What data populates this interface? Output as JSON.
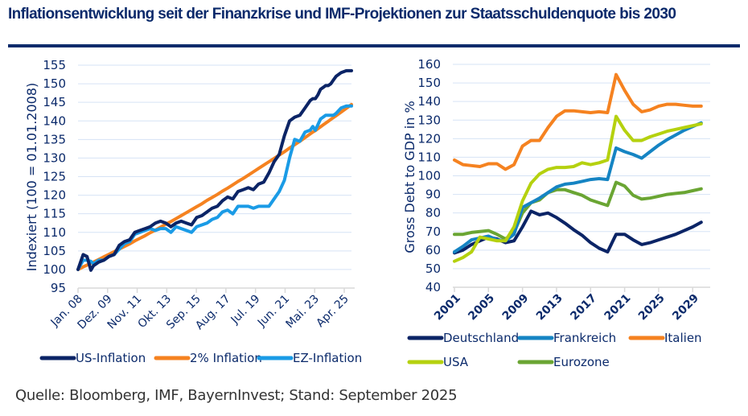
{
  "header": {
    "title": "Inflationsentwicklung seit der Finanzkrise und IMF-Projektionen zur Staatsschuldenquote bis 2030",
    "rule_color": "#0b2a6b"
  },
  "footer": {
    "source": "Quelle: Bloomberg, IMF, BayernInvest; Stand: September 2025"
  },
  "chart_data": [
    {
      "type": "line",
      "title": "",
      "xlabel": "",
      "ylabel": "Indexiert (100 =  01.01.2008)",
      "ylim": [
        95,
        155
      ],
      "yticks": [
        "95",
        "100",
        "105",
        "110",
        "115",
        "120",
        "125",
        "130",
        "135",
        "140",
        "145",
        "150",
        "155"
      ],
      "xticks": [
        "Jan. 08",
        "Dez. 09",
        "Nov. 11",
        "Okt. 13",
        "Sep. 15",
        "Aug. 17",
        "Jul. 19",
        "Jun. 21",
        "Mai. 23",
        "Apr. 25"
      ],
      "x_range_months": [
        0,
        212
      ],
      "grid": true,
      "legend_position": "bottom",
      "x_months": [
        0,
        4,
        7,
        10,
        12,
        16,
        20,
        24,
        28,
        32,
        36,
        40,
        44,
        48,
        52,
        56,
        60,
        64,
        68,
        72,
        76,
        80,
        84,
        88,
        92,
        96,
        100,
        104,
        108,
        112,
        116,
        120,
        124,
        128,
        132,
        136,
        140,
        144,
        148,
        152,
        156,
        160,
        164,
        168,
        172,
        176,
        180,
        182,
        184,
        186,
        188,
        190,
        192,
        194,
        196,
        198,
        200,
        204,
        208,
        212
      ],
      "series": [
        {
          "name": "US-Inflation",
          "color": "#0b2466",
          "values": [
            100,
            104,
            103.5,
            99.8,
            101,
            102,
            102.5,
            103.5,
            104,
            106.5,
            107.5,
            108,
            110,
            110.5,
            111,
            111.5,
            112.5,
            113,
            112.5,
            111.5,
            112.5,
            113,
            112.5,
            112,
            114,
            114.5,
            115.5,
            116.5,
            117,
            118.5,
            119.5,
            119,
            121,
            121.5,
            122,
            121.5,
            123,
            123.5,
            126,
            129,
            131,
            136,
            140,
            141,
            141.5,
            143.5,
            145.5,
            146,
            146,
            147,
            148.5,
            149,
            149.5,
            149.5,
            150,
            151,
            152,
            153,
            153.5,
            153.5
          ]
        },
        {
          "name": "2% Inflation",
          "color": "#f58220",
          "values": [
            100,
            100.7,
            101.2,
            101.7,
            102,
            102.7,
            103.4,
            104.1,
            104.8,
            105.5,
            106.2,
            106.9,
            107.7,
            108.4,
            109.1,
            109.9,
            110.6,
            111.4,
            112.2,
            112.9,
            113.7,
            114.5,
            115.3,
            116.1,
            116.9,
            117.7,
            118.6,
            119.4,
            120.2,
            121.1,
            121.9,
            122.8,
            123.7,
            124.5,
            125.4,
            126.3,
            127.2,
            128.1,
            129,
            129.9,
            130.8,
            131.7,
            132.7,
            133.6,
            134.5,
            135.5,
            136.5,
            137,
            137.4,
            137.9,
            138.4,
            138.9,
            139.4,
            139.9,
            140.4,
            140.9,
            141.4,
            142.4,
            143.4,
            144.4
          ]
        },
        {
          "name": "EZ-Inflation",
          "color": "#1a9be6",
          "values": [
            100,
            102.5,
            102.5,
            102.2,
            101.5,
            102.5,
            102.5,
            103.5,
            104,
            105.5,
            107,
            107.5,
            109.5,
            110,
            110.5,
            111,
            110.5,
            111,
            111,
            110,
            111.5,
            111,
            110.5,
            110,
            111.5,
            112,
            112.5,
            113.5,
            114,
            115.5,
            116,
            115,
            117,
            117,
            117,
            116.5,
            117,
            117,
            117,
            119,
            121,
            124,
            130,
            135,
            134.5,
            137,
            137.5,
            138.5,
            137.5,
            139,
            140.5,
            141,
            141.5,
            141.5,
            141.5,
            141.5,
            142,
            143.5,
            144,
            144
          ]
        }
      ]
    },
    {
      "type": "line",
      "title": "",
      "xlabel": "",
      "ylabel": "Gross Debt to GDP in %",
      "ylim": [
        40,
        160
      ],
      "yticks": [
        "40",
        "50",
        "60",
        "70",
        "80",
        "90",
        "100",
        "110",
        "120",
        "130",
        "140",
        "150",
        "160"
      ],
      "xticks": [
        "2001",
        "2005",
        "2009",
        "2013",
        "2017",
        "2021",
        "2025",
        "2029"
      ],
      "grid": true,
      "legend_position": "bottom",
      "x": [
        2001,
        2002,
        2003,
        2004,
        2005,
        2006,
        2007,
        2008,
        2009,
        2010,
        2011,
        2012,
        2013,
        2014,
        2015,
        2016,
        2017,
        2018,
        2019,
        2020,
        2021,
        2022,
        2023,
        2024,
        2025,
        2026,
        2027,
        2028,
        2029,
        2030
      ],
      "series": [
        {
          "name": "Deutschland",
          "color": "#0b2466",
          "values": [
            58.5,
            60,
            63,
            65,
            67,
            66,
            64,
            65,
            72.5,
            81,
            79,
            80,
            77.5,
            74.5,
            71,
            68,
            64,
            61,
            59,
            68.5,
            68.5,
            65.5,
            63,
            64,
            65.5,
            67,
            68.5,
            70.5,
            72.5,
            75
          ]
        },
        {
          "name": "Frankreich",
          "color": "#1584c3",
          "values": [
            59,
            62,
            65.5,
            66.5,
            67.5,
            65.5,
            65,
            68.5,
            83,
            85.5,
            88,
            91,
            94,
            95.5,
            96,
            97,
            98,
            98.5,
            98,
            115,
            113,
            111.5,
            109.5,
            113,
            116.5,
            119.5,
            122,
            124.5,
            126.5,
            128.5
          ]
        },
        {
          "name": "Italien",
          "color": "#f58220",
          "values": [
            108.5,
            106,
            105.5,
            105,
            106.5,
            106.5,
            103.5,
            106,
            116,
            119,
            119,
            126,
            132,
            135,
            135,
            134.5,
            134,
            134.5,
            134,
            154.5,
            146,
            138.5,
            134.5,
            135.5,
            137.5,
            138.5,
            138.5,
            138,
            137.5,
            137.5
          ]
        },
        {
          "name": "USA",
          "color": "#b5d10f",
          "values": [
            54,
            56,
            59,
            67,
            66,
            65,
            65,
            72.5,
            86.5,
            96,
            101,
            103.5,
            104.5,
            104.5,
            105,
            107,
            106,
            107,
            108.5,
            132,
            124.5,
            119,
            119,
            121,
            122.5,
            124,
            125,
            126,
            127,
            128
          ]
        },
        {
          "name": "Eurozone",
          "color": "#6aa533",
          "values": [
            68.5,
            68.5,
            69.5,
            70,
            70.5,
            68.5,
            66,
            69.5,
            80,
            85.5,
            87,
            91,
            92.5,
            92.5,
            91,
            89.5,
            87,
            85.5,
            84,
            96.5,
            94.5,
            89.5,
            87.5,
            88,
            89,
            90,
            90.5,
            91,
            92,
            93
          ]
        }
      ]
    }
  ]
}
